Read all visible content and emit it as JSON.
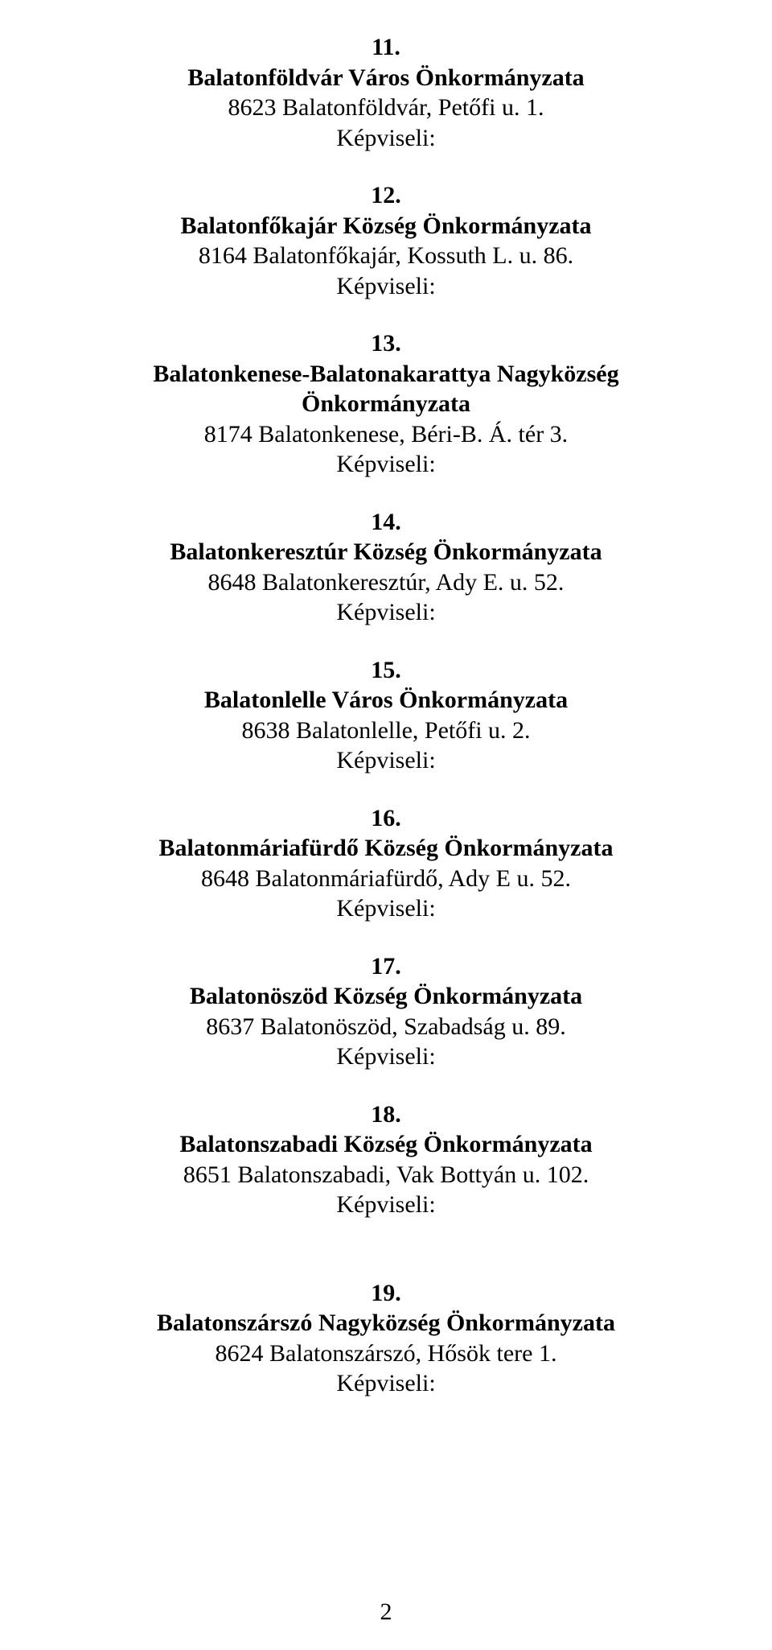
{
  "rep_label": "Képviseli:",
  "page_number": "2",
  "entries": [
    {
      "num": "11.",
      "title": "Balatonföldvár Város Önkormányzata",
      "address": "8623 Balatonföldvár, Petőfi u. 1."
    },
    {
      "num": "12.",
      "title": "Balatonfőkajár Község Önkormányzata",
      "address": "8164 Balatonfőkajár, Kossuth L. u. 86."
    },
    {
      "num": "13.",
      "title": "Balatonkenese-Balatonakarattya Nagyközség Önkormányzata",
      "address": "8174 Balatonkenese, Béri-B. Á. tér 3."
    },
    {
      "num": "14.",
      "title": "Balatonkeresztúr Község Önkormányzata",
      "address": "8648 Balatonkeresztúr, Ady E. u. 52."
    },
    {
      "num": "15.",
      "title": "Balatonlelle Város Önkormányzata",
      "address": "8638 Balatonlelle, Petőfi u. 2."
    },
    {
      "num": "16.",
      "title": "Balatonmáriafürdő Község Önkormányzata",
      "address": "8648 Balatonmáriafürdő, Ady E u. 52."
    },
    {
      "num": "17.",
      "title": "Balatonöszöd Község Önkormányzata",
      "address": "8637 Balatonöszöd, Szabadság u. 89."
    },
    {
      "num": "18.",
      "title": "Balatonszabadi Község Önkormányzata",
      "address": "8651 Balatonszabadi, Vak Bottyán u. 102."
    },
    {
      "num": "19.",
      "title": "Balatonszárszó Nagyközség Önkormányzata",
      "address": "8624 Balatonszárszó, Hősök tere 1."
    }
  ]
}
